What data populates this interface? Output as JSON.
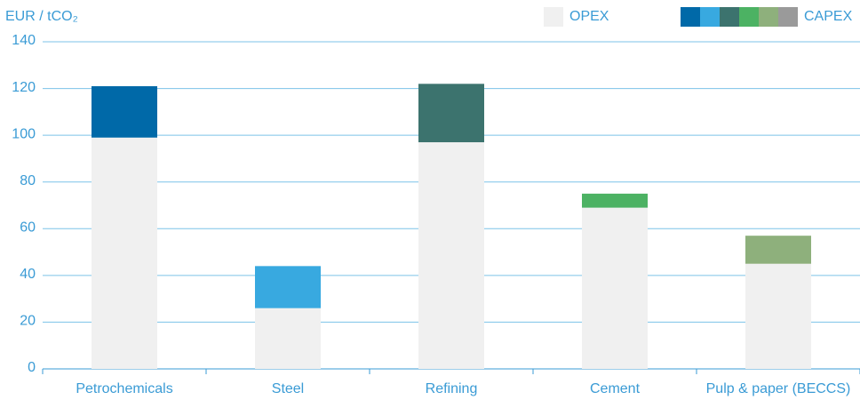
{
  "chart_data": {
    "type": "stacked_bar",
    "y_label": "EUR / tCO₂",
    "categories": [
      "Petrochemicals",
      "Steel",
      "Refining",
      "Cement",
      "Pulp & paper (BECCS)"
    ],
    "series": [
      {
        "name": "OPEX",
        "color": "#f0f0f0",
        "values": [
          99,
          26,
          97,
          69,
          45
        ]
      },
      {
        "name": "CAPEX",
        "colors": [
          "#0069a8",
          "#38a9e0",
          "#3c736e",
          "#4cb263",
          "#8eb07c"
        ],
        "legend_colors": [
          "#0069a8",
          "#38a9e0",
          "#3c736e",
          "#4cb263",
          "#8eb07c",
          "#9a9a9a"
        ],
        "values": [
          22,
          18,
          25,
          6,
          12
        ]
      }
    ],
    "ylim": [
      0,
      140
    ],
    "yticks": [
      0,
      20,
      40,
      60,
      80,
      100,
      120,
      140
    ],
    "grid": true,
    "legend": "top-right"
  }
}
